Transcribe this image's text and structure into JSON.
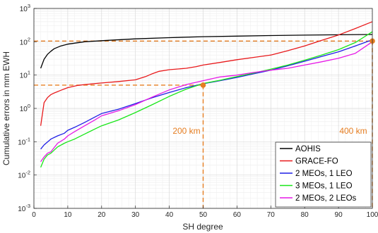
{
  "chart_data": {
    "type": "line",
    "xlabel": "SH degree",
    "ylabel": "Cumulative errors in mm EWH",
    "xlim": [
      0,
      100
    ],
    "ylim": [
      0.001,
      1000
    ],
    "yscale": "log",
    "grid": true,
    "legend_position": "bottom-right",
    "x_ticks": [
      0,
      10,
      20,
      30,
      40,
      50,
      60,
      70,
      80,
      90,
      100
    ],
    "y_ticks": [
      {
        "value": 0.001,
        "base": "10",
        "exp": "-3"
      },
      {
        "value": 0.01,
        "base": "10",
        "exp": "-2"
      },
      {
        "value": 0.1,
        "base": "10",
        "exp": "-1"
      },
      {
        "value": 1,
        "base": "10",
        "exp": "0"
      },
      {
        "value": 10,
        "base": "10",
        "exp": "1"
      },
      {
        "value": 100,
        "base": "10",
        "exp": "2"
      },
      {
        "value": 1000,
        "base": "10",
        "exp": "3"
      }
    ],
    "series": [
      {
        "name": "AOHIS",
        "color": "#000000",
        "points": [
          [
            2,
            16
          ],
          [
            3,
            30
          ],
          [
            4,
            42
          ],
          [
            5,
            52
          ],
          [
            6,
            62
          ],
          [
            8,
            75
          ],
          [
            10,
            85
          ],
          [
            15,
            100
          ],
          [
            20,
            108
          ],
          [
            30,
            122
          ],
          [
            40,
            133
          ],
          [
            50,
            142
          ],
          [
            60,
            148
          ],
          [
            70,
            154
          ],
          [
            80,
            158
          ],
          [
            90,
            162
          ],
          [
            100,
            165
          ]
        ]
      },
      {
        "name": "GRACE-FO",
        "color": "#e8191b",
        "points": [
          [
            2,
            0.3
          ],
          [
            3,
            1.5
          ],
          [
            4,
            2.1
          ],
          [
            5,
            2.6
          ],
          [
            6,
            2.9
          ],
          [
            8,
            3.5
          ],
          [
            10,
            4.2
          ],
          [
            13,
            4.9
          ],
          [
            15,
            5.2
          ],
          [
            20,
            5.8
          ],
          [
            25,
            6.4
          ],
          [
            30,
            7.2
          ],
          [
            33,
            9
          ],
          [
            35,
            11
          ],
          [
            37,
            13
          ],
          [
            40,
            14.5
          ],
          [
            45,
            16
          ],
          [
            48,
            18
          ],
          [
            50,
            20
          ],
          [
            55,
            24
          ],
          [
            60,
            29
          ],
          [
            65,
            34
          ],
          [
            70,
            40
          ],
          [
            75,
            54
          ],
          [
            80,
            75
          ],
          [
            85,
            110
          ],
          [
            90,
            160
          ],
          [
            95,
            250
          ],
          [
            100,
            400
          ]
        ]
      },
      {
        "name": "2 MEOs, 1 LEO",
        "color": "#1f1fe6",
        "points": [
          [
            2,
            0.06
          ],
          [
            3,
            0.08
          ],
          [
            5,
            0.12
          ],
          [
            7,
            0.15
          ],
          [
            9,
            0.18
          ],
          [
            10,
            0.22
          ],
          [
            12,
            0.27
          ],
          [
            15,
            0.38
          ],
          [
            18,
            0.55
          ],
          [
            20,
            0.7
          ],
          [
            25,
            0.95
          ],
          [
            30,
            1.4
          ],
          [
            35,
            2.1
          ],
          [
            40,
            3
          ],
          [
            45,
            4.2
          ],
          [
            50,
            5.5
          ],
          [
            55,
            6.8
          ],
          [
            60,
            8.5
          ],
          [
            65,
            11
          ],
          [
            70,
            14
          ],
          [
            75,
            19
          ],
          [
            80,
            26
          ],
          [
            85,
            36
          ],
          [
            90,
            50
          ],
          [
            95,
            75
          ],
          [
            100,
            115
          ]
        ]
      },
      {
        "name": "3 MEOs, 1 LEO",
        "color": "#19e619",
        "points": [
          [
            2,
            0.017
          ],
          [
            3,
            0.03
          ],
          [
            4,
            0.04
          ],
          [
            5,
            0.045
          ],
          [
            7,
            0.07
          ],
          [
            9,
            0.09
          ],
          [
            10,
            0.1
          ],
          [
            12,
            0.12
          ],
          [
            15,
            0.17
          ],
          [
            18,
            0.24
          ],
          [
            20,
            0.3
          ],
          [
            25,
            0.45
          ],
          [
            30,
            0.75
          ],
          [
            35,
            1.3
          ],
          [
            40,
            2.3
          ],
          [
            45,
            3.8
          ],
          [
            50,
            5.6
          ],
          [
            55,
            7
          ],
          [
            60,
            9
          ],
          [
            65,
            11.5
          ],
          [
            70,
            15
          ],
          [
            75,
            20
          ],
          [
            80,
            28
          ],
          [
            85,
            40
          ],
          [
            90,
            58
          ],
          [
            95,
            95
          ],
          [
            100,
            200
          ]
        ]
      },
      {
        "name": "2 MEOs, 2 LEOs",
        "color": "#e619e6",
        "points": [
          [
            2,
            0.025
          ],
          [
            3,
            0.035
          ],
          [
            4,
            0.045
          ],
          [
            5,
            0.05
          ],
          [
            7,
            0.09
          ],
          [
            9,
            0.12
          ],
          [
            10,
            0.15
          ],
          [
            12,
            0.2
          ],
          [
            15,
            0.3
          ],
          [
            18,
            0.45
          ],
          [
            20,
            0.6
          ],
          [
            25,
            0.85
          ],
          [
            30,
            1.3
          ],
          [
            35,
            2.2
          ],
          [
            40,
            3.6
          ],
          [
            45,
            5.2
          ],
          [
            50,
            6.8
          ],
          [
            55,
            8.8
          ],
          [
            60,
            10
          ],
          [
            65,
            12
          ],
          [
            70,
            14
          ],
          [
            75,
            16
          ],
          [
            80,
            20
          ],
          [
            85,
            25
          ],
          [
            90,
            32
          ],
          [
            95,
            45
          ],
          [
            100,
            100
          ]
        ]
      }
    ],
    "reference_lines": [
      {
        "color": "#e67e22",
        "points": [
          [
            0,
            105
          ],
          [
            100,
            105
          ]
        ]
      },
      {
        "color": "#e67e22",
        "points": [
          [
            0,
            5
          ],
          [
            50,
            5
          ]
        ]
      },
      {
        "color": "#e67e22",
        "points": [
          [
            50,
            5
          ],
          [
            50,
            0.001
          ]
        ]
      },
      {
        "color": "#e67e22",
        "points": [
          [
            100,
            105
          ],
          [
            100,
            0.001
          ]
        ]
      }
    ],
    "markers": [
      {
        "x": 50,
        "y": 5,
        "color": "#e67e22"
      },
      {
        "x": 100,
        "y": 105,
        "color": "#e67e22"
      }
    ],
    "annotations": [
      {
        "text": "200 km",
        "color": "#e67e22"
      },
      {
        "text": "400 km",
        "color": "#e67e22"
      }
    ]
  }
}
